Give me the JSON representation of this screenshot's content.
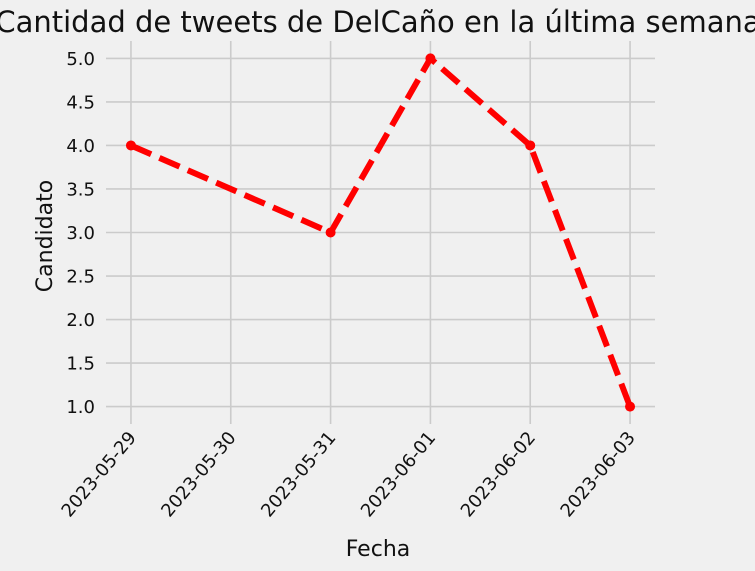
{
  "chart_data": {
    "type": "line",
    "title": "Cantidad de tweets de DelCaño en la última semana",
    "xlabel": "Fecha",
    "ylabel": "Candidato",
    "x_ticks": [
      "2023-05-29",
      "2023-05-30",
      "2023-05-31",
      "2023-06-01",
      "2023-06-02",
      "2023-06-03"
    ],
    "y_ticks": [
      "1.0",
      "1.5",
      "2.0",
      "2.5",
      "3.0",
      "3.5",
      "4.0",
      "4.5",
      "5.0"
    ],
    "xlim": [
      "2023-05-28.75",
      "2023-06-03.25"
    ],
    "ylim": [
      0.8,
      5.2
    ],
    "grid": true,
    "series": [
      {
        "x": [
          "2023-05-29",
          "2023-05-31",
          "2023-06-01",
          "2023-06-02",
          "2023-06-03"
        ],
        "values": [
          4,
          3,
          5,
          4,
          1
        ],
        "color": "#ff0000",
        "line_style": "dashed",
        "marker": "circle"
      }
    ]
  }
}
